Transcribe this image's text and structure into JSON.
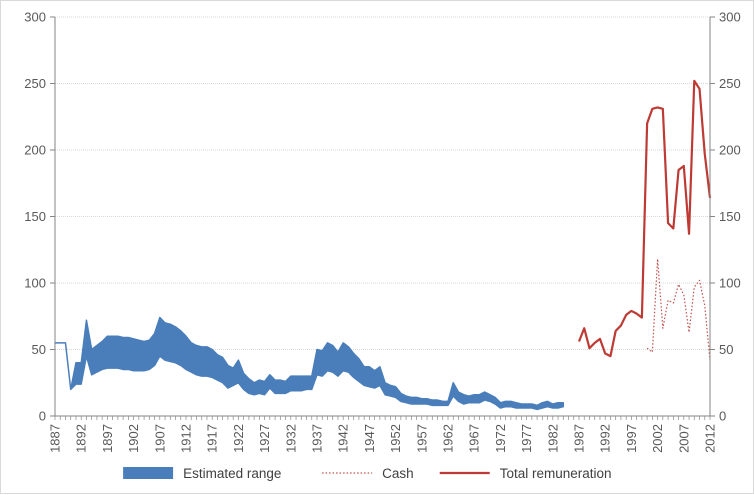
{
  "chart_data": {
    "type": "line",
    "title": "",
    "xlabel": "",
    "ylabel": "",
    "xlim": [
      1887,
      2012
    ],
    "ylim": [
      0,
      300
    ],
    "y_ticks": [
      0,
      50,
      100,
      150,
      200,
      250,
      300
    ],
    "y_tick_labels": [
      "0",
      "50",
      "100",
      "150",
      "200",
      "250",
      "300"
    ],
    "y2_tick_labels": [
      "0",
      "50",
      "100",
      "150",
      "200",
      "250",
      "300"
    ],
    "x_tick_labels": [
      "1887",
      "1892",
      "1897",
      "1902",
      "1907",
      "1912",
      "1917",
      "1922",
      "1927",
      "1932",
      "1937",
      "1942",
      "1947",
      "1952",
      "1957",
      "1962",
      "1967",
      "1972",
      "1977",
      "1982",
      "1987",
      "1992",
      "1997",
      "2002",
      "2007",
      "2012"
    ],
    "grid": "horizontal",
    "legend_position": "bottom",
    "colors": {
      "range": "#4a7ebb",
      "cash": "#c0504d",
      "total": "#be3a34",
      "grid": "#d9d9d9",
      "axis": "#868686"
    },
    "series": [
      {
        "name": "Estimated range",
        "kind": "range",
        "x": [
          1887,
          1888,
          1889,
          1890,
          1891,
          1892,
          1893,
          1894,
          1895,
          1896,
          1897,
          1898,
          1899,
          1900,
          1901,
          1902,
          1903,
          1904,
          1905,
          1906,
          1907,
          1908,
          1909,
          1910,
          1911,
          1912,
          1913,
          1914,
          1915,
          1916,
          1917,
          1918,
          1919,
          1920,
          1921,
          1922,
          1923,
          1924,
          1925,
          1926,
          1927,
          1928,
          1929,
          1930,
          1931,
          1932,
          1933,
          1934,
          1935,
          1936,
          1937,
          1938,
          1939,
          1940,
          1941,
          1942,
          1943,
          1944,
          1945,
          1946,
          1947,
          1948,
          1949,
          1950,
          1951,
          1952,
          1953,
          1954,
          1955,
          1956,
          1957,
          1958,
          1959,
          1960,
          1961,
          1962,
          1963,
          1964,
          1965,
          1966,
          1967,
          1968,
          1969,
          1970,
          1971,
          1972,
          1973,
          1974,
          1975,
          1976,
          1977,
          1978,
          1979,
          1980,
          1981,
          1982,
          1983,
          1984
        ],
        "high": [
          55,
          55,
          55,
          20,
          40,
          40,
          72,
          50,
          53,
          56,
          60,
          60,
          60,
          59,
          59,
          58,
          57,
          56,
          57,
          62,
          74,
          70,
          69,
          67,
          64,
          60,
          55,
          53,
          52,
          52,
          50,
          46,
          44,
          38,
          36,
          42,
          32,
          28,
          25,
          27,
          26,
          31,
          27,
          27,
          26,
          30,
          30,
          30,
          30,
          30,
          50,
          49,
          55,
          53,
          48,
          55,
          52,
          47,
          43,
          37,
          37,
          34,
          37,
          25,
          23,
          22,
          17,
          15,
          14,
          14,
          13,
          13,
          12,
          12,
          11,
          11,
          25,
          18,
          16,
          15,
          16,
          16,
          18,
          16,
          14,
          10,
          11,
          11,
          10,
          9,
          9,
          9,
          8,
          10,
          11,
          9,
          10,
          10
        ],
        "low": [
          55,
          55,
          55,
          20,
          24,
          24,
          45,
          31,
          33,
          35,
          36,
          36,
          36,
          35,
          35,
          34,
          34,
          34,
          35,
          38,
          45,
          42,
          41,
          40,
          38,
          35,
          33,
          31,
          30,
          30,
          29,
          27,
          25,
          21,
          23,
          25,
          20,
          17,
          16,
          17,
          16,
          21,
          17,
          17,
          17,
          19,
          19,
          19,
          20,
          20,
          31,
          30,
          34,
          33,
          30,
          34,
          33,
          29,
          26,
          23,
          22,
          21,
          23,
          16,
          15,
          14,
          11,
          10,
          9,
          9,
          9,
          9,
          8,
          8,
          8,
          8,
          15,
          11,
          9,
          10,
          10,
          10,
          12,
          11,
          9,
          6,
          7,
          7,
          6,
          6,
          6,
          6,
          5,
          6,
          7,
          6,
          6,
          7
        ]
      },
      {
        "name": "Cash",
        "kind": "dotted",
        "x": [
          2000,
          2001,
          2002,
          2003,
          2004,
          2005,
          2006,
          2007,
          2008,
          2009,
          2010,
          2011,
          2012
        ],
        "values": [
          51,
          48,
          118,
          66,
          87,
          85,
          99,
          91,
          63,
          97,
          102,
          83,
          42
        ]
      },
      {
        "name": "Total remuneration",
        "kind": "solid",
        "x": [
          1987,
          1988,
          1989,
          1990,
          1991,
          1992,
          1993,
          1994,
          1995,
          1996,
          1997,
          1998,
          1999,
          2000,
          2001,
          2002,
          2003,
          2004,
          2005,
          2006,
          2007,
          2008,
          2009,
          2010,
          2011,
          2012
        ],
        "values": [
          56,
          66,
          51,
          55,
          58,
          47,
          45,
          64,
          68,
          76,
          79,
          77,
          74,
          220,
          231,
          232,
          231,
          145,
          141,
          185,
          188,
          137,
          252,
          246,
          197,
          164
        ]
      }
    ]
  }
}
